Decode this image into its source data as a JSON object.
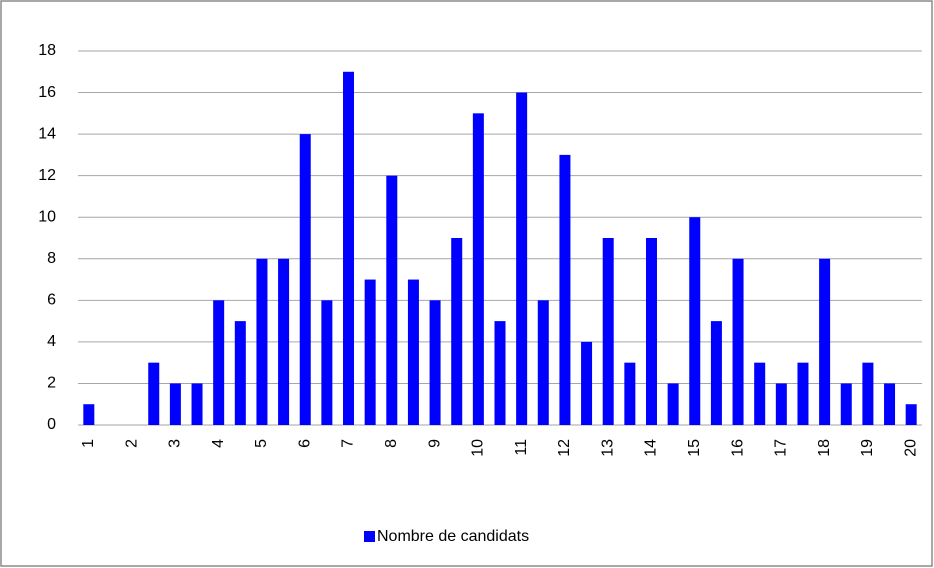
{
  "chart_data": {
    "type": "bar",
    "categories": [
      "1",
      null,
      "2",
      null,
      "3",
      null,
      "4",
      null,
      "5",
      null,
      "6",
      null,
      "7",
      null,
      "8",
      null,
      "9",
      null,
      "10",
      null,
      "11",
      null,
      "12",
      null,
      "13",
      null,
      "14",
      null,
      "15",
      null,
      "16",
      null,
      "17",
      null,
      "18",
      null,
      "19",
      null,
      "20"
    ],
    "series": [
      {
        "name": "Nombre de candidats",
        "color": "#0000ff",
        "values": [
          1,
          0,
          0,
          3,
          2,
          2,
          6,
          5,
          8,
          8,
          14,
          6,
          17,
          7,
          12,
          7,
          6,
          9,
          15,
          5,
          16,
          6,
          13,
          4,
          9,
          3,
          9,
          2,
          10,
          5,
          8,
          3,
          2,
          3,
          8,
          2,
          3,
          2,
          1
        ]
      }
    ],
    "ylim": [
      0,
      18
    ],
    "yticks": [
      0,
      2,
      4,
      6,
      8,
      10,
      12,
      14,
      16,
      18
    ],
    "grid": true,
    "legend": "bottom"
  }
}
